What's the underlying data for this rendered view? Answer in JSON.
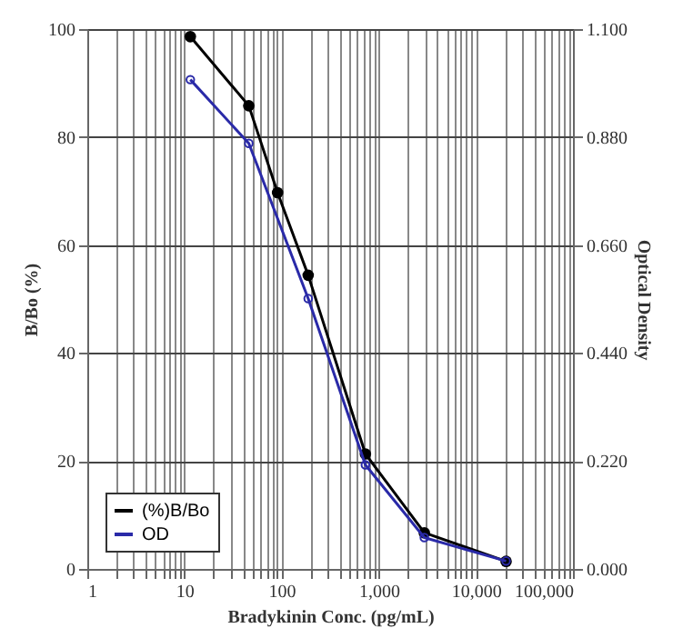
{
  "chart_data": {
    "type": "line",
    "xlabel": "Bradykinin Conc. (pg/mL)",
    "ylabel": "B/Bo (%)",
    "y2label": "Optical Density",
    "log": "x",
    "xlim": [
      1,
      100000
    ],
    "xticks": [
      1,
      {
        "value": 2,
        "label": null
      },
      {
        "value": 3,
        "label": null
      },
      {
        "value": 4,
        "label": null
      },
      {
        "value": 5,
        "label": null
      },
      {
        "value": 6,
        "label": null
      },
      {
        "value": 7,
        "label": null
      },
      {
        "value": 8,
        "label": null
      },
      {
        "value": 9,
        "label": null
      },
      10,
      {
        "value": 20,
        "label": null
      },
      {
        "value": 30,
        "label": null
      },
      {
        "value": 40,
        "label": null
      },
      {
        "value": 50,
        "label": null
      },
      {
        "value": 60,
        "label": null
      },
      {
        "value": 70,
        "label": null
      },
      {
        "value": 80,
        "label": null
      },
      {
        "value": 90,
        "label": null
      },
      100,
      {
        "value": 200,
        "label": null
      },
      {
        "value": 300,
        "label": null
      },
      {
        "value": 400,
        "label": null
      },
      {
        "value": 500,
        "label": null
      },
      {
        "value": 600,
        "label": null
      },
      {
        "value": 700,
        "label": null
      },
      {
        "value": 800,
        "label": null
      },
      {
        "value": 900,
        "label": null
      },
      {
        "value": 1000,
        "label": "1,000"
      },
      {
        "value": 2000,
        "label": null
      },
      {
        "value": 3000,
        "label": null
      },
      {
        "value": 4000,
        "label": null
      },
      {
        "value": 5000,
        "label": null
      },
      {
        "value": 6000,
        "label": null
      },
      {
        "value": 7000,
        "label": null
      },
      {
        "value": 8000,
        "label": null
      },
      {
        "value": 9000,
        "label": null
      },
      {
        "value": 10000,
        "label": "10,000"
      },
      {
        "value": 20000,
        "label": null
      },
      {
        "value": 30000,
        "label": null
      },
      {
        "value": 40000,
        "label": null
      },
      {
        "value": 50000,
        "label": null
      },
      {
        "value": 60000,
        "label": null
      },
      {
        "value": 70000,
        "label": null
      },
      {
        "value": 80000,
        "label": null
      },
      {
        "value": 90000,
        "label": null
      },
      {
        "value": 100000,
        "label": "100,000"
      }
    ],
    "ylim": [
      0,
      100
    ],
    "yticks": [
      0,
      20,
      40,
      60,
      80,
      100
    ],
    "y2lim": [
      0,
      1.1
    ],
    "y2ticks": [
      {
        "value": 0,
        "label": "0.000"
      },
      {
        "value": 0.22,
        "label": "0.220"
      },
      {
        "value": 0.44,
        "label": "0.440"
      },
      {
        "value": 0.66,
        "label": "0.660"
      },
      {
        "value": 0.88,
        "label": "0.880"
      },
      {
        "value": 1.1,
        "label": "1.100"
      }
    ],
    "grid": true,
    "legend": "bottom left",
    "marker": "circle",
    "series": [
      {
        "name": "(%)B/Bo",
        "color": "#000000",
        "x": [
          11.5,
          46,
          91,
          188,
          730,
          2950,
          20500
        ],
        "values": [
          98.6,
          85.8,
          69.7,
          54.4,
          21.3,
          6.7,
          1.4
        ]
      },
      {
        "name": "OD",
        "color": "#2a2aa8",
        "axis": "y2",
        "x": [
          11.5,
          46,
          188,
          730,
          2950,
          20500
        ],
        "values": [
          0.997,
          0.867,
          0.551,
          0.212,
          0.064,
          0.016
        ]
      }
    ]
  }
}
